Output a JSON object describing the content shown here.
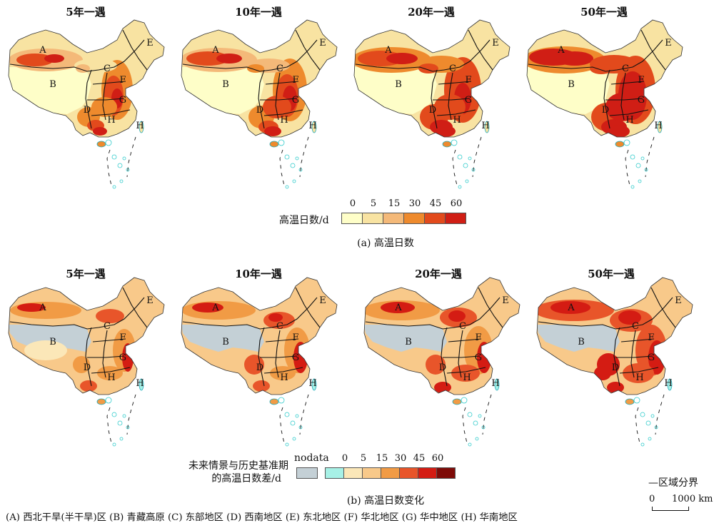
{
  "panel_a": {
    "titles": [
      "5年一遇",
      "10年一遇",
      "20年一遇",
      "50年一遇"
    ],
    "legend_label": "高温日数/d",
    "legend_ticks": [
      "0",
      "5",
      "15",
      "30",
      "45",
      "60"
    ],
    "legend_colors": [
      "#fefec8",
      "#f8e3a2",
      "#f4b979",
      "#ee8a2d",
      "#e24a1c",
      "#d01e15"
    ],
    "caption": "(a) 高温日数"
  },
  "panel_b": {
    "titles": [
      "5年一遇",
      "10年一遇",
      "20年一遇",
      "50年一遇"
    ],
    "legend_label_1": "未来情景与历史基准期",
    "legend_label_2": "的高温日数差/d",
    "nodata_label": "nodata",
    "nodata_color": "#c4d0d6",
    "legend_ticks": [
      "0",
      "5",
      "15",
      "30",
      "45",
      "60"
    ],
    "legend_colors": [
      "#a7f1e6",
      "#fbe7b8",
      "#f8c98a",
      "#f19b45",
      "#e8552a",
      "#d41c13",
      "#7e0b08"
    ],
    "caption": "(b) 高温日数变化"
  },
  "region_labels": [
    "A",
    "B",
    "C",
    "D",
    "E",
    "F",
    "G",
    "H"
  ],
  "region_legend": "(A) 西北干旱(半干旱)区  (B) 青藏高原  (C) 东部地区  (D) 西南地区  (E) 东北地区  (F) 华北地区  (G) 华中地区  (H) 华南地区",
  "boundary_legend": "—区域分界",
  "scale_bar": {
    "zero": "0",
    "distance": "1000 km"
  }
}
